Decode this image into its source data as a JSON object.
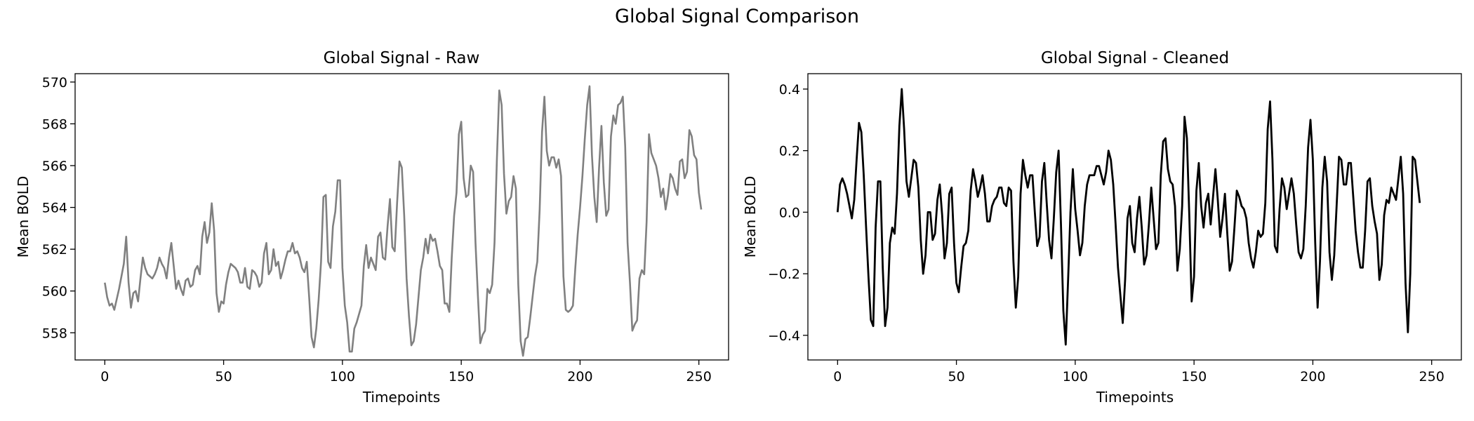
{
  "figure": {
    "suptitle": "Global Signal Comparison"
  },
  "chart_data": [
    {
      "type": "line",
      "title": "Global Signal - Raw",
      "xlabel": "Timepoints",
      "ylabel": "Mean BOLD",
      "xlim": [
        -12.5,
        262.5
      ],
      "ylim": [
        556.7,
        570.4
      ],
      "xticks": [
        0,
        50,
        100,
        150,
        200,
        250
      ],
      "yticks": [
        558,
        560,
        562,
        564,
        566,
        568,
        570
      ],
      "grid": false,
      "legend": "none",
      "color": "#808080",
      "series": [
        {
          "x_start": 0,
          "x_step": 1,
          "values": [
            560.4,
            559.7,
            559.3,
            559.4,
            559.1,
            559.6,
            560.1,
            560.7,
            561.3,
            562.6,
            560.4,
            559.2,
            559.9,
            560.0,
            559.5,
            560.6,
            561.6,
            561.1,
            560.8,
            560.7,
            560.6,
            560.8,
            561.1,
            561.6,
            561.3,
            561.1,
            560.6,
            561.6,
            562.3,
            561.2,
            560.1,
            560.5,
            560.1,
            559.8,
            560.5,
            560.6,
            560.2,
            560.3,
            561.0,
            561.2,
            560.8,
            562.6,
            563.3,
            562.3,
            562.8,
            564.2,
            562.9,
            559.9,
            559.0,
            559.5,
            559.4,
            560.3,
            560.9,
            561.3,
            561.2,
            561.1,
            560.9,
            560.4,
            560.4,
            561.1,
            560.2,
            560.1,
            561.0,
            560.9,
            560.7,
            560.2,
            560.4,
            561.8,
            562.3,
            560.8,
            561.0,
            562.0,
            561.2,
            561.4,
            560.6,
            561.0,
            561.5,
            561.9,
            561.9,
            562.3,
            561.8,
            561.9,
            561.6,
            561.1,
            560.9,
            561.4,
            559.7,
            557.8,
            557.3,
            558.2,
            559.6,
            561.4,
            564.5,
            564.6,
            561.4,
            561.1,
            563.1,
            563.8,
            565.3,
            565.3,
            561.1,
            559.3,
            558.5,
            557.1,
            557.1,
            558.2,
            558.5,
            558.9,
            559.3,
            561.2,
            562.2,
            561.1,
            561.6,
            561.3,
            561.0,
            562.6,
            562.8,
            561.6,
            561.5,
            563.1,
            564.4,
            562.1,
            561.9,
            564.2,
            566.2,
            565.9,
            563.6,
            560.6,
            558.8,
            557.4,
            557.6,
            558.4,
            559.7,
            561.0,
            561.6,
            562.5,
            561.8,
            562.7,
            562.4,
            562.5,
            561.9,
            561.2,
            561.0,
            559.4,
            559.4,
            559.0,
            561.6,
            563.6,
            564.7,
            567.5,
            568.1,
            565.4,
            564.5,
            564.6,
            566.0,
            565.7,
            562.3,
            559.8,
            557.5,
            557.9,
            558.1,
            560.1,
            559.9,
            560.3,
            562.3,
            566.3,
            569.6,
            568.9,
            565.6,
            563.7,
            564.3,
            564.5,
            565.5,
            564.9,
            560.3,
            557.6,
            556.9,
            557.7,
            557.8,
            558.7,
            559.7,
            560.7,
            561.4,
            563.9,
            567.6,
            569.3,
            566.7,
            566.0,
            566.4,
            566.4,
            565.9,
            566.3,
            565.5,
            560.7,
            559.1,
            559.0,
            559.1,
            559.3,
            561.1,
            562.7,
            564.0,
            565.5,
            567.3,
            568.9,
            569.8,
            566.5,
            564.5,
            563.3,
            565.9,
            567.9,
            565.2,
            563.6,
            563.9,
            567.4,
            568.4,
            568.0,
            568.9,
            569.0,
            569.3,
            566.9,
            562.3,
            560.4,
            558.1,
            558.4,
            558.6,
            560.6,
            561.0,
            560.8,
            563.3,
            567.5,
            566.6,
            566.3,
            566.0,
            565.4,
            564.5,
            564.9,
            563.9,
            564.6,
            565.6,
            565.4,
            564.9,
            564.6,
            566.2,
            566.3,
            565.4,
            565.7,
            567.7,
            567.4,
            566.5,
            566.3,
            564.7,
            563.9
          ]
        }
      ]
    },
    {
      "type": "line",
      "title": "Global Signal - Cleaned",
      "xlabel": "Timepoints",
      "ylabel": "Mean BOLD",
      "xlim": [
        -12.5,
        262.5
      ],
      "ylim": [
        -0.48,
        0.45
      ],
      "xticks": [
        0,
        50,
        100,
        150,
        200,
        250
      ],
      "yticks": [
        -0.4,
        -0.2,
        0.0,
        0.2,
        0.4
      ],
      "ytick_labels": [
        "−0.4",
        "−0.2",
        "0.0",
        "0.2",
        "0.4"
      ],
      "grid": false,
      "legend": "none",
      "color": "#000000",
      "series": [
        {
          "x_start": 0,
          "x_step": 1,
          "values": [
            0.0,
            0.09,
            0.11,
            0.09,
            0.06,
            0.02,
            -0.02,
            0.04,
            0.17,
            0.29,
            0.26,
            0.12,
            -0.05,
            -0.21,
            -0.35,
            -0.37,
            -0.05,
            0.1,
            0.1,
            -0.18,
            -0.37,
            -0.31,
            -0.1,
            -0.05,
            -0.07,
            0.06,
            0.28,
            0.4,
            0.27,
            0.1,
            0.05,
            0.11,
            0.17,
            0.16,
            0.08,
            -0.09,
            -0.2,
            -0.14,
            0.0,
            0.0,
            -0.09,
            -0.07,
            0.04,
            0.09,
            -0.01,
            -0.15,
            -0.1,
            0.06,
            0.08,
            -0.1,
            -0.23,
            -0.26,
            -0.18,
            -0.11,
            -0.1,
            -0.06,
            0.07,
            0.14,
            0.1,
            0.05,
            0.08,
            0.12,
            0.06,
            -0.03,
            -0.03,
            0.02,
            0.04,
            0.05,
            0.08,
            0.08,
            0.03,
            0.02,
            0.08,
            0.07,
            -0.16,
            -0.31,
            -0.21,
            0.06,
            0.17,
            0.12,
            0.08,
            0.12,
            0.12,
            0.0,
            -0.11,
            -0.08,
            0.1,
            0.16,
            0.03,
            -0.09,
            -0.15,
            -0.02,
            0.13,
            0.2,
            -0.04,
            -0.32,
            -0.43,
            -0.22,
            0.0,
            0.14,
            0.01,
            -0.06,
            -0.14,
            -0.1,
            0.02,
            0.09,
            0.12,
            0.12,
            0.12,
            0.15,
            0.15,
            0.12,
            0.09,
            0.13,
            0.2,
            0.17,
            0.09,
            -0.04,
            -0.18,
            -0.27,
            -0.36,
            -0.22,
            -0.02,
            0.02,
            -0.1,
            -0.13,
            -0.02,
            0.05,
            -0.05,
            -0.17,
            -0.14,
            -0.04,
            0.08,
            -0.02,
            -0.12,
            -0.1,
            0.12,
            0.23,
            0.24,
            0.14,
            0.1,
            0.09,
            0.02,
            -0.19,
            -0.12,
            0.02,
            0.31,
            0.24,
            -0.01,
            -0.29,
            -0.21,
            0.07,
            0.16,
            0.02,
            -0.05,
            0.03,
            0.06,
            -0.04,
            0.05,
            0.14,
            0.04,
            -0.08,
            -0.02,
            0.06,
            -0.07,
            -0.19,
            -0.16,
            -0.05,
            0.07,
            0.05,
            0.02,
            0.01,
            -0.02,
            -0.1,
            -0.15,
            -0.18,
            -0.13,
            -0.06,
            -0.08,
            -0.07,
            0.03,
            0.27,
            0.36,
            0.17,
            -0.11,
            -0.13,
            0.01,
            0.11,
            0.08,
            0.01,
            0.06,
            0.11,
            0.06,
            -0.04,
            -0.13,
            -0.15,
            -0.12,
            0.02,
            0.21,
            0.3,
            0.17,
            -0.1,
            -0.31,
            -0.16,
            0.08,
            0.18,
            0.1,
            -0.13,
            -0.22,
            -0.14,
            0.02,
            0.18,
            0.17,
            0.09,
            0.09,
            0.16,
            0.16,
            0.05,
            -0.06,
            -0.13,
            -0.18,
            -0.18,
            -0.06,
            0.1,
            0.11,
            0.02,
            -0.03,
            -0.07,
            -0.22,
            -0.17,
            -0.01,
            0.04,
            0.03,
            0.08,
            0.06,
            0.04,
            0.11,
            0.18,
            0.06,
            -0.23,
            -0.39,
            -0.2,
            0.18,
            0.17,
            0.1,
            0.03
          ]
        }
      ]
    }
  ]
}
